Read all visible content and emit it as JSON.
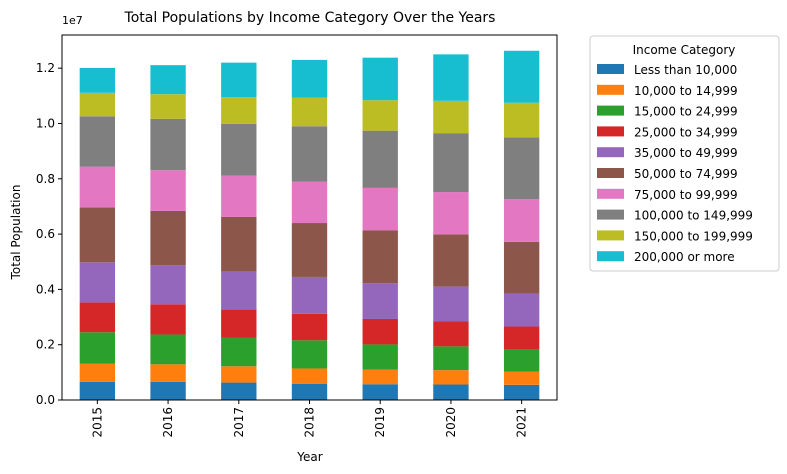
{
  "chart_data": {
    "type": "bar",
    "stacked": true,
    "title": "Total Populations by Income Category Over the Years",
    "xlabel": "Year",
    "ylabel": "Total Population",
    "y_offset_label": "1e7",
    "categories": [
      "2015",
      "2016",
      "2017",
      "2018",
      "2019",
      "2020",
      "2021"
    ],
    "y_ticks": [
      "0.0",
      "0.2",
      "0.4",
      "0.6",
      "0.8",
      "1.0",
      "1.2"
    ],
    "ylim": [
      0,
      13200000
    ],
    "grid": false,
    "legend": {
      "title": "Income Category",
      "placement": "outside-right"
    },
    "series": [
      {
        "name": "Less than 10,000",
        "color": "#1f77b4",
        "values": [
          660000,
          660000,
          630000,
          590000,
          570000,
          560000,
          550000
        ]
      },
      {
        "name": "10,000 to 14,999",
        "color": "#ff7f0e",
        "values": [
          660000,
          630000,
          590000,
          550000,
          530000,
          520000,
          480000
        ]
      },
      {
        "name": "15,000 to 24,999",
        "color": "#2ca02c",
        "values": [
          1130000,
          1080000,
          1040000,
          1020000,
          910000,
          860000,
          790000
        ]
      },
      {
        "name": "25,000 to 34,999",
        "color": "#d62728",
        "values": [
          1080000,
          1090000,
          1010000,
          960000,
          920000,
          900000,
          840000
        ]
      },
      {
        "name": "35,000 to 49,999",
        "color": "#9467bd",
        "values": [
          1450000,
          1410000,
          1380000,
          1330000,
          1290000,
          1260000,
          1180000
        ]
      },
      {
        "name": "50,000 to 74,999",
        "color": "#8c564b",
        "values": [
          1980000,
          1970000,
          1970000,
          1950000,
          1920000,
          1890000,
          1880000
        ]
      },
      {
        "name": "75,000 to 99,999",
        "color": "#e377c2",
        "values": [
          1480000,
          1470000,
          1490000,
          1500000,
          1530000,
          1530000,
          1540000
        ]
      },
      {
        "name": "100,000 to 149,999",
        "color": "#7f7f7f",
        "values": [
          1820000,
          1860000,
          1880000,
          2000000,
          2070000,
          2130000,
          2240000
        ]
      },
      {
        "name": "150,000 to 199,999",
        "color": "#bcbd22",
        "values": [
          850000,
          890000,
          960000,
          1030000,
          1100000,
          1170000,
          1250000
        ]
      },
      {
        "name": "200,000 or more",
        "color": "#17becf",
        "values": [
          900000,
          1050000,
          1250000,
          1370000,
          1540000,
          1680000,
          1880000
        ]
      }
    ]
  }
}
